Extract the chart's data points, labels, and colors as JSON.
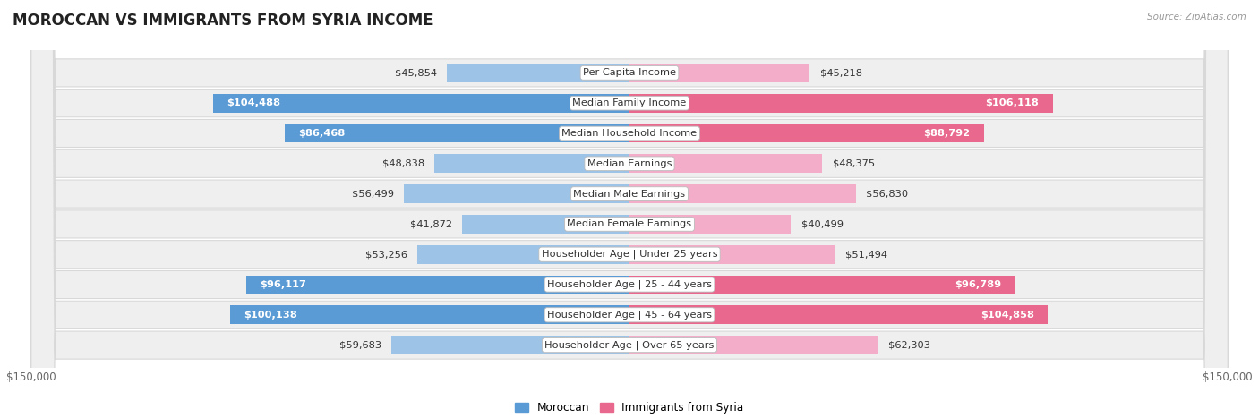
{
  "title": "MOROCCAN VS IMMIGRANTS FROM SYRIA INCOME",
  "source": "Source: ZipAtlas.com",
  "categories": [
    "Per Capita Income",
    "Median Family Income",
    "Median Household Income",
    "Median Earnings",
    "Median Male Earnings",
    "Median Female Earnings",
    "Householder Age | Under 25 years",
    "Householder Age | 25 - 44 years",
    "Householder Age | 45 - 64 years",
    "Householder Age | Over 65 years"
  ],
  "moroccan_values": [
    45854,
    104488,
    86468,
    48838,
    56499,
    41872,
    53256,
    96117,
    100138,
    59683
  ],
  "syria_values": [
    45218,
    106118,
    88792,
    48375,
    56830,
    40499,
    51494,
    96789,
    104858,
    62303
  ],
  "moroccan_labels": [
    "$45,854",
    "$104,488",
    "$86,468",
    "$48,838",
    "$56,499",
    "$41,872",
    "$53,256",
    "$96,117",
    "$100,138",
    "$59,683"
  ],
  "syria_labels": [
    "$45,218",
    "$106,118",
    "$88,792",
    "$48,375",
    "$56,830",
    "$40,499",
    "$51,494",
    "$96,789",
    "$104,858",
    "$62,303"
  ],
  "moroccan_color_solid": "#5b9bd5",
  "moroccan_color_light": "#9dc3e6",
  "syria_color_solid": "#e8698d",
  "syria_color_light": "#f4adc8",
  "xlim": 150000,
  "background_color": "#ffffff",
  "row_bg_color": "#efefef",
  "row_border_color": "#d8d8d8",
  "legend_moroccan": "Moroccan",
  "legend_syria": "Immigrants from Syria",
  "title_fontsize": 12,
  "label_fontsize": 8.2,
  "category_fontsize": 8.2,
  "axis_fontsize": 8.5,
  "threshold_solid": 70000
}
